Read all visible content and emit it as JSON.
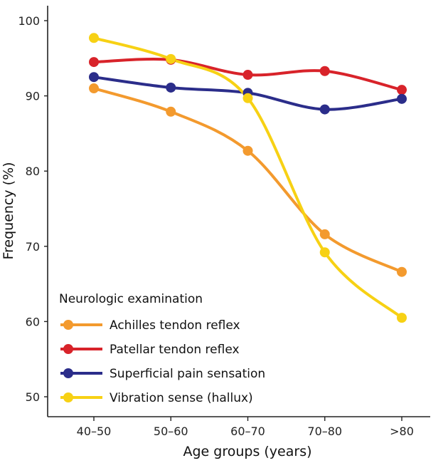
{
  "chart_data": {
    "type": "line",
    "title": "",
    "xlabel": "Age groups (years)",
    "ylabel": "Frequency (%)",
    "categories": [
      "40–50",
      "50–60",
      "60–70",
      "70–80",
      ">80"
    ],
    "ylim": [
      47,
      103
    ],
    "yticks": [
      50,
      60,
      70,
      80,
      90,
      100
    ],
    "grid": false,
    "legend": {
      "title": "Neurologic examination",
      "position": "bottom-left"
    },
    "series": [
      {
        "name": "Achilles tendon reflex",
        "color": "#F39A2E",
        "values": [
          91.0,
          87.9,
          82.7,
          71.6,
          66.6
        ]
      },
      {
        "name": "Patellar tendon reflex",
        "color": "#D8232A",
        "values": [
          94.5,
          94.8,
          92.8,
          93.3,
          90.8
        ]
      },
      {
        "name": "Superficial pain sensation",
        "color": "#2B2D8A",
        "values": [
          92.5,
          91.1,
          90.4,
          88.2,
          89.6
        ]
      },
      {
        "name": "Vibration sense (hallux)",
        "color": "#F7D114",
        "values": [
          97.7,
          94.9,
          89.7,
          69.2,
          60.5
        ]
      }
    ]
  }
}
